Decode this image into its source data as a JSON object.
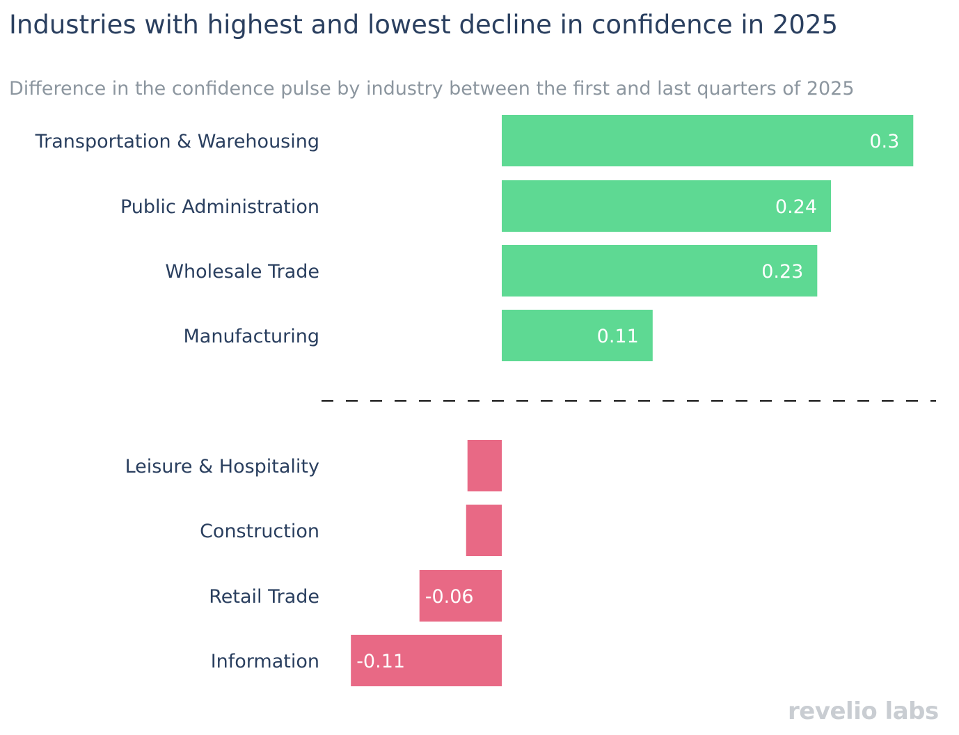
{
  "title": "Industries with highest and lowest decline in confidence in 2025",
  "subtitle": "Difference in the confidence pulse by industry between the first and last quarters of 2025",
  "logo": "revelio labs",
  "colors": {
    "positive": "#5ed993",
    "negative": "#e86985",
    "label": "#2a3f5f",
    "divider": "#111111"
  },
  "chart_data": {
    "type": "bar",
    "orientation": "horizontal",
    "title": "Industries with highest and lowest decline in confidence in 2025",
    "subtitle": "Difference in the confidence pulse by industry between the first and last quarters of 2025",
    "xlim": [
      -0.12,
      0.34
    ],
    "groups": [
      {
        "name": "highest",
        "categories": [
          "Transportation & Warehousing",
          "Public Administration",
          "Wholesale Trade",
          "Manufacturing"
        ],
        "values": [
          0.3,
          0.24,
          0.23,
          0.11
        ],
        "labels": [
          "0.3",
          "0.24",
          "0.23",
          "0.11"
        ]
      },
      {
        "name": "lowest",
        "categories": [
          "Leisure & Hospitality",
          "Construction",
          "Retail Trade",
          "Information"
        ],
        "values": [
          -0.025,
          -0.026,
          -0.06,
          -0.11
        ],
        "labels": [
          "",
          "",
          "-0.06",
          "-0.11"
        ]
      }
    ],
    "divider": "dashed"
  }
}
